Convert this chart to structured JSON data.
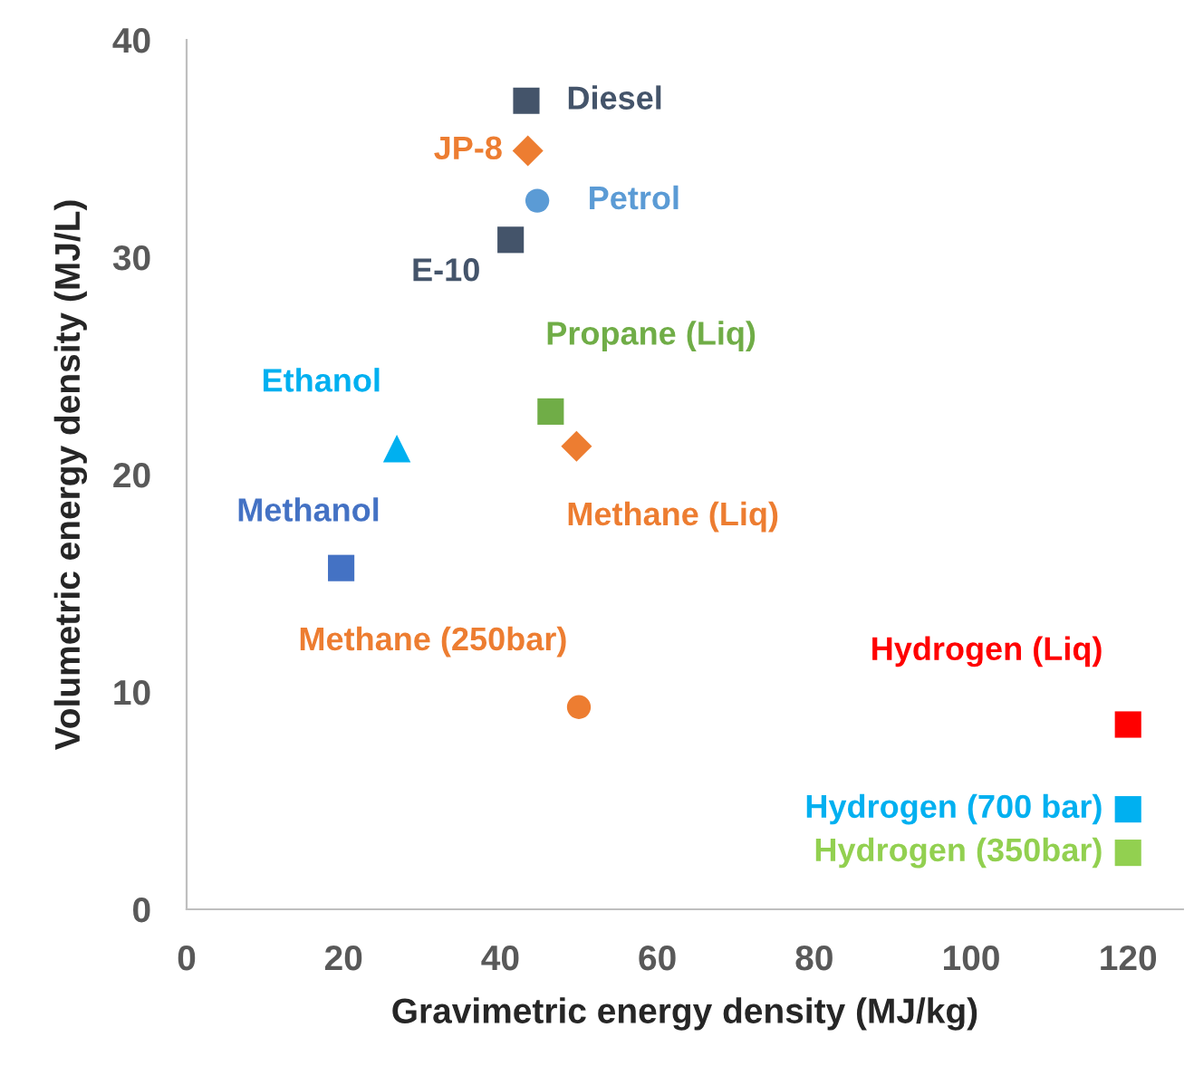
{
  "chart_data": {
    "type": "scatter",
    "xlabel": "Gravimetric energy density (MJ/kg)",
    "ylabel": "Volumetric energy density (MJ/L)",
    "xlim": [
      0,
      127
    ],
    "xticks": [
      0,
      20,
      40,
      60,
      80,
      100,
      120
    ],
    "ylim": [
      0,
      40
    ],
    "yticks": [
      0,
      10,
      20,
      30,
      40
    ],
    "grid": false,
    "legend": false,
    "series": [
      {
        "name": "Diesel",
        "color": "#44546a",
        "marker": "square",
        "x": [
          43.3
        ],
        "values": [
          37.2
        ]
      },
      {
        "name": "JP-8",
        "color": "#ed7d31",
        "marker": "diamond",
        "x": [
          43.5
        ],
        "values": [
          34.9
        ]
      },
      {
        "name": "Petrol",
        "color": "#5b9bd5",
        "marker": "circle",
        "x": [
          44.7
        ],
        "values": [
          32.6
        ]
      },
      {
        "name": "E-10",
        "color": "#44546a",
        "marker": "square",
        "x": [
          41.3
        ],
        "values": [
          30.8
        ]
      },
      {
        "name": "Propane (Liq)",
        "color": "#70ad47",
        "marker": "square",
        "x": [
          46.4
        ],
        "values": [
          22.9
        ]
      },
      {
        "name": "Methane (Liq)",
        "color": "#ed7d31",
        "marker": "diamond",
        "x": [
          49.7
        ],
        "values": [
          21.3
        ]
      },
      {
        "name": "Ethanol",
        "color": "#00b0f0",
        "marker": "triangle",
        "x": [
          26.8
        ],
        "values": [
          21.2
        ]
      },
      {
        "name": "Methanol",
        "color": "#4472c4",
        "marker": "square",
        "x": [
          19.7
        ],
        "values": [
          15.7
        ]
      },
      {
        "name": "Methane (250bar)",
        "color": "#ed7d31",
        "marker": "circle",
        "x": [
          50.0
        ],
        "values": [
          9.3
        ]
      },
      {
        "name": "Hydrogen (Liq)",
        "color": "#ff0000",
        "marker": "square",
        "x": [
          120
        ],
        "values": [
          8.5
        ]
      },
      {
        "name": "Hydrogen (700 bar)",
        "color": "#00b0f0",
        "marker": "square",
        "x": [
          120
        ],
        "values": [
          4.6
        ]
      },
      {
        "name": "Hydrogen (350bar)",
        "color": "#92d050",
        "marker": "square",
        "x": [
          120
        ],
        "values": [
          2.6
        ]
      }
    ]
  }
}
